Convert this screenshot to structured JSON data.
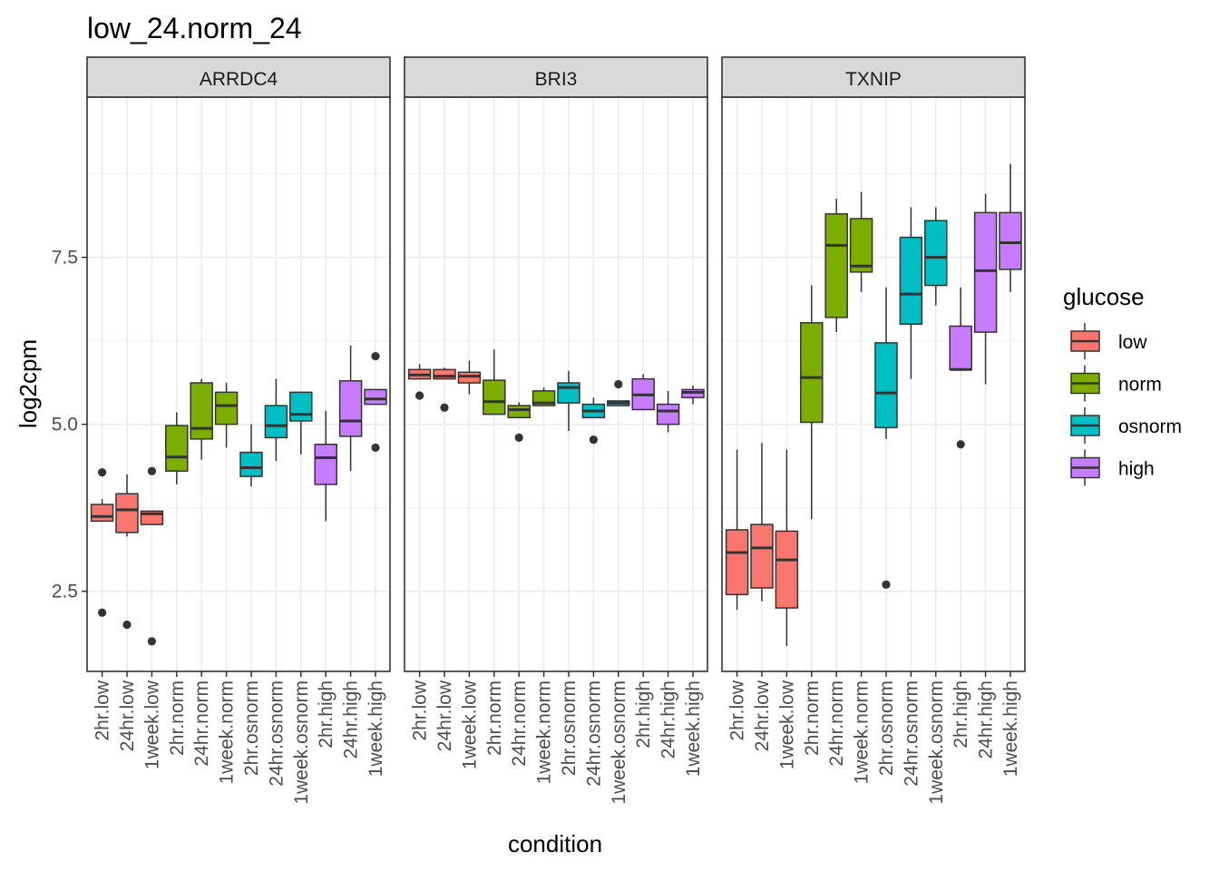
{
  "chart_data": {
    "type": "boxplot",
    "title": "low_24.norm_24",
    "xlabel": "condition",
    "ylabel": "log2cpm",
    "ylim": [
      1.3,
      9.9
    ],
    "yticks": [
      2.5,
      5.0,
      7.5
    ],
    "ytick_labels": [
      "2.5",
      "5.0",
      "7.5"
    ],
    "categories": [
      "2hr.low",
      "24hr.low",
      "1week.low",
      "2hr.norm",
      "24hr.norm",
      "1week.norm",
      "2hr.osnorm",
      "24hr.osnorm",
      "1week.osnorm",
      "2hr.high",
      "24hr.high",
      "1week.high"
    ],
    "category_group": [
      "low",
      "low",
      "low",
      "norm",
      "norm",
      "norm",
      "osnorm",
      "osnorm",
      "osnorm",
      "high",
      "high",
      "high"
    ],
    "legend": {
      "title": "glucose",
      "position": "right",
      "entries": [
        {
          "label": "low",
          "color": "#F8766D"
        },
        {
          "label": "norm",
          "color": "#7CAE00"
        },
        {
          "label": "osnorm",
          "color": "#00BFC4"
        },
        {
          "label": "high",
          "color": "#C77CFF"
        }
      ]
    },
    "grid": true,
    "facets": [
      {
        "label": "ARRDC4",
        "boxes": [
          {
            "category": "2hr.low",
            "whisker_low": 3.55,
            "q1": 3.55,
            "median": 3.62,
            "q3": 3.8,
            "whisker_high": 3.88,
            "outliers": [
              4.28,
              2.18
            ]
          },
          {
            "category": "24hr.low",
            "whisker_low": 3.32,
            "q1": 3.38,
            "median": 3.72,
            "q3": 3.96,
            "whisker_high": 4.25,
            "outliers": [
              2.0
            ]
          },
          {
            "category": "1week.low",
            "whisker_low": 3.5,
            "q1": 3.5,
            "median": 3.66,
            "q3": 3.7,
            "whisker_high": 3.7,
            "outliers": [
              4.3,
              1.75
            ]
          },
          {
            "category": "2hr.norm",
            "whisker_low": 4.1,
            "q1": 4.3,
            "median": 4.51,
            "q3": 4.98,
            "whisker_high": 5.18,
            "outliers": []
          },
          {
            "category": "24hr.norm",
            "whisker_low": 4.47,
            "q1": 4.78,
            "median": 4.94,
            "q3": 5.62,
            "whisker_high": 5.68,
            "outliers": []
          },
          {
            "category": "1week.norm",
            "whisker_low": 4.65,
            "q1": 5.0,
            "median": 5.28,
            "q3": 5.48,
            "whisker_high": 5.62,
            "outliers": []
          },
          {
            "category": "2hr.osnorm",
            "whisker_low": 4.07,
            "q1": 4.22,
            "median": 4.35,
            "q3": 4.58,
            "whisker_high": 5.0,
            "outliers": []
          },
          {
            "category": "24hr.osnorm",
            "whisker_low": 4.45,
            "q1": 4.8,
            "median": 4.98,
            "q3": 5.28,
            "whisker_high": 5.68,
            "outliers": []
          },
          {
            "category": "1week.osnorm",
            "whisker_low": 4.55,
            "q1": 5.05,
            "median": 5.15,
            "q3": 5.48,
            "whisker_high": 5.48,
            "outliers": []
          },
          {
            "category": "2hr.high",
            "whisker_low": 3.55,
            "q1": 4.1,
            "median": 4.5,
            "q3": 4.7,
            "whisker_high": 5.2,
            "outliers": []
          },
          {
            "category": "24hr.high",
            "whisker_low": 4.3,
            "q1": 4.82,
            "median": 5.05,
            "q3": 5.65,
            "whisker_high": 6.18,
            "outliers": []
          },
          {
            "category": "1week.high",
            "whisker_low": 5.3,
            "q1": 5.3,
            "median": 5.38,
            "q3": 5.52,
            "whisker_high": 5.52,
            "outliers": [
              6.02,
              4.65
            ]
          }
        ]
      },
      {
        "label": "BRI3",
        "boxes": [
          {
            "category": "2hr.low",
            "whisker_low": 5.68,
            "q1": 5.68,
            "median": 5.74,
            "q3": 5.82,
            "whisker_high": 5.9,
            "outliers": [
              5.43
            ]
          },
          {
            "category": "24hr.low",
            "whisker_low": 5.68,
            "q1": 5.68,
            "median": 5.72,
            "q3": 5.82,
            "whisker_high": 5.85,
            "outliers": [
              5.25
            ]
          },
          {
            "category": "1week.low",
            "whisker_low": 5.45,
            "q1": 5.62,
            "median": 5.72,
            "q3": 5.78,
            "whisker_high": 5.95,
            "outliers": []
          },
          {
            "category": "2hr.norm",
            "whisker_low": 5.15,
            "q1": 5.15,
            "median": 5.34,
            "q3": 5.66,
            "whisker_high": 6.12,
            "outliers": []
          },
          {
            "category": "24hr.norm",
            "whisker_low": 5.1,
            "q1": 5.1,
            "median": 5.22,
            "q3": 5.28,
            "whisker_high": 5.33,
            "outliers": [
              4.8
            ]
          },
          {
            "category": "1week.norm",
            "whisker_low": 5.28,
            "q1": 5.28,
            "median": 5.32,
            "q3": 5.5,
            "whisker_high": 5.55,
            "outliers": []
          },
          {
            "category": "2hr.osnorm",
            "whisker_low": 4.9,
            "q1": 5.32,
            "median": 5.55,
            "q3": 5.62,
            "whisker_high": 5.8,
            "outliers": []
          },
          {
            "category": "24hr.osnorm",
            "whisker_low": 5.1,
            "q1": 5.1,
            "median": 5.2,
            "q3": 5.3,
            "whisker_high": 5.4,
            "outliers": [
              4.77
            ]
          },
          {
            "category": "1week.osnorm",
            "whisker_low": 5.28,
            "q1": 5.28,
            "median": 5.32,
            "q3": 5.35,
            "whisker_high": 5.35,
            "outliers": [
              5.6
            ]
          },
          {
            "category": "2hr.high",
            "whisker_low": 5.22,
            "q1": 5.22,
            "median": 5.44,
            "q3": 5.68,
            "whisker_high": 5.75,
            "outliers": []
          },
          {
            "category": "24hr.high",
            "whisker_low": 4.88,
            "q1": 5.0,
            "median": 5.2,
            "q3": 5.3,
            "whisker_high": 5.5,
            "outliers": []
          },
          {
            "category": "1week.high",
            "whisker_low": 5.3,
            "q1": 5.4,
            "median": 5.48,
            "q3": 5.52,
            "whisker_high": 5.58,
            "outliers": []
          }
        ]
      },
      {
        "label": "TXNIP",
        "boxes": [
          {
            "category": "2hr.low",
            "whisker_low": 2.22,
            "q1": 2.45,
            "median": 3.08,
            "q3": 3.42,
            "whisker_high": 4.62,
            "outliers": []
          },
          {
            "category": "24hr.low",
            "whisker_low": 2.35,
            "q1": 2.55,
            "median": 3.15,
            "q3": 3.5,
            "whisker_high": 4.72,
            "outliers": []
          },
          {
            "category": "1week.low",
            "whisker_low": 1.68,
            "q1": 2.25,
            "median": 2.97,
            "q3": 3.4,
            "whisker_high": 4.62,
            "outliers": []
          },
          {
            "category": "2hr.norm",
            "whisker_low": 3.58,
            "q1": 5.03,
            "median": 5.7,
            "q3": 6.52,
            "whisker_high": 7.08,
            "outliers": []
          },
          {
            "category": "24hr.norm",
            "whisker_low": 6.38,
            "q1": 6.6,
            "median": 7.68,
            "q3": 8.15,
            "whisker_high": 8.38,
            "outliers": []
          },
          {
            "category": "1week.norm",
            "whisker_low": 6.98,
            "q1": 7.28,
            "median": 7.37,
            "q3": 8.08,
            "whisker_high": 8.48,
            "outliers": []
          },
          {
            "category": "2hr.osnorm",
            "whisker_low": 4.78,
            "q1": 4.95,
            "median": 5.47,
            "q3": 6.22,
            "whisker_high": 7.05,
            "outliers": [
              2.6
            ]
          },
          {
            "category": "24hr.osnorm",
            "whisker_low": 5.68,
            "q1": 6.5,
            "median": 6.95,
            "q3": 7.8,
            "whisker_high": 8.25,
            "outliers": []
          },
          {
            "category": "1week.osnorm",
            "whisker_low": 6.78,
            "q1": 7.08,
            "median": 7.5,
            "q3": 8.05,
            "whisker_high": 8.25,
            "outliers": []
          },
          {
            "category": "2hr.high",
            "whisker_low": 5.82,
            "q1": 5.82,
            "median": 5.82,
            "q3": 6.47,
            "whisker_high": 7.05,
            "outliers": [
              4.7
            ]
          },
          {
            "category": "24hr.high",
            "whisker_low": 5.6,
            "q1": 6.38,
            "median": 7.3,
            "q3": 8.17,
            "whisker_high": 8.45,
            "outliers": []
          },
          {
            "category": "1week.high",
            "whisker_low": 6.98,
            "q1": 7.32,
            "median": 7.72,
            "q3": 8.17,
            "whisker_high": 8.9,
            "outliers": []
          }
        ]
      }
    ]
  }
}
